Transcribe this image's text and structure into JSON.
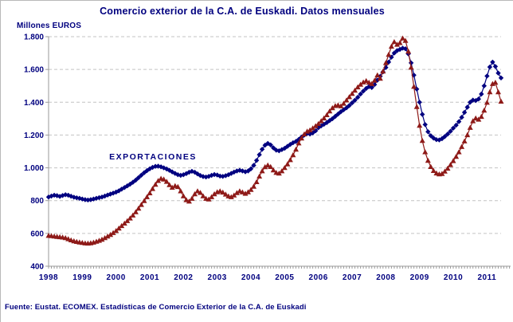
{
  "header": {
    "title": "Comercio exterior de la C.A. de Euskadi. Datos mensuales"
  },
  "footer": {
    "source": "Fuente: Eustat. ECOMEX. Estadísticas de Comercio Exterior de la C.A. de Euskadi"
  },
  "colors": {
    "text_navy": "#00007F",
    "series_blue": "#000080",
    "series_red": "#8E1A18",
    "gridline": "#C3C3C3",
    "axis": "#9A9A9A",
    "background": "#FFFFFF"
  },
  "chart_data": {
    "type": "line",
    "title": "Comercio exterior de la C.A. de Euskadi. Datos mensuales",
    "ylabel": "Millones EUROS",
    "xlabel": "",
    "ylim": [
      400,
      1800
    ],
    "ytick_interval": 200,
    "ytick_labels": [
      "400",
      "600",
      "800",
      "1.000",
      "1.200",
      "1.400",
      "1.600",
      "1.800"
    ],
    "xtick_labels": [
      "1998",
      "1999",
      "2000",
      "2001",
      "2002",
      "2003",
      "2004",
      "2005",
      "2006",
      "2007",
      "2008",
      "2009",
      "2010",
      "2011"
    ],
    "x_frequency": "monthly",
    "x_first": "1998-01",
    "x_last": "2011-06",
    "grid": "horizontal-dashed",
    "legend_position": "label inside plot (blue series only)",
    "series": [
      {
        "id": "exportaciones",
        "label": "EXPORTACIONES",
        "color": "#000080",
        "marker": "diamond",
        "values": [
          822,
          828,
          833,
          830,
          826,
          831,
          836,
          833,
          827,
          821,
          817,
          814,
          810,
          806,
          804,
          806,
          810,
          814,
          818,
          822,
          828,
          834,
          840,
          846,
          852,
          860,
          870,
          880,
          890,
          900,
          912,
          925,
          940,
          955,
          970,
          983,
          994,
          1003,
          1009,
          1010,
          1006,
          1000,
          993,
          985,
          975,
          966,
          958,
          954,
          958,
          965,
          973,
          979,
          973,
          963,
          953,
          947,
          944,
          948,
          954,
          959,
          956,
          950,
          948,
          952,
          958,
          966,
          974,
          981,
          985,
          981,
          976,
          981,
          994,
          1015,
          1045,
          1080,
          1113,
          1138,
          1149,
          1140,
          1122,
          1108,
          1104,
          1111,
          1119,
          1131,
          1143,
          1153,
          1161,
          1173,
          1187,
          1200,
          1210,
          1206,
          1213,
          1226,
          1245,
          1256,
          1266,
          1276,
          1288,
          1300,
          1314,
          1328,
          1342,
          1354,
          1366,
          1380,
          1396,
          1412,
          1430,
          1450,
          1468,
          1484,
          1495,
          1490,
          1508,
          1535,
          1558,
          1585,
          1612,
          1645,
          1675,
          1700,
          1715,
          1722,
          1730,
          1726,
          1695,
          1640,
          1565,
          1480,
          1400,
          1326,
          1264,
          1220,
          1196,
          1181,
          1172,
          1170,
          1178,
          1191,
          1206,
          1223,
          1242,
          1260,
          1282,
          1308,
          1338,
          1370,
          1400,
          1413,
          1410,
          1420,
          1450,
          1500,
          1560,
          1615,
          1645,
          1618,
          1578,
          1548
        ]
      },
      {
        "id": "serie-roja",
        "label": "",
        "color": "#8E1A18",
        "marker": "triangle",
        "values": [
          586,
          584,
          582,
          580,
          578,
          576,
          572,
          566,
          559,
          553,
          549,
          546,
          543,
          540,
          539,
          541,
          545,
          550,
          556,
          563,
          572,
          582,
          592,
          603,
          616,
          631,
          646,
          661,
          676,
          692,
          710,
          730,
          752,
          775,
          798,
          822,
          846,
          872,
          898,
          921,
          934,
          930,
          916,
          896,
          880,
          890,
          884,
          858,
          828,
          804,
          795,
          812,
          840,
          858,
          848,
          828,
          812,
          808,
          822,
          840,
          852,
          858,
          850,
          838,
          827,
          822,
          832,
          847,
          858,
          851,
          843,
          852,
          866,
          886,
          914,
          948,
          980,
          1005,
          1016,
          1006,
          986,
          970,
          966,
          980,
          1000,
          1022,
          1048,
          1078,
          1112,
          1150,
          1180,
          1205,
          1222,
          1230,
          1242,
          1255,
          1268,
          1285,
          1302,
          1322,
          1345,
          1365,
          1378,
          1382,
          1376,
          1392,
          1412,
          1432,
          1452,
          1472,
          1492,
          1508,
          1522,
          1530,
          1520,
          1512,
          1532,
          1565,
          1545,
          1588,
          1640,
          1690,
          1740,
          1768,
          1752,
          1762,
          1790,
          1775,
          1710,
          1612,
          1495,
          1372,
          1258,
          1165,
          1096,
          1044,
          1006,
          982,
          967,
          961,
          964,
          978,
          996,
          1018,
          1042,
          1068,
          1096,
          1128,
          1162,
          1200,
          1245,
          1285,
          1302,
          1295,
          1312,
          1350,
          1398,
          1462,
          1512,
          1520,
          1462,
          1405
        ]
      }
    ]
  }
}
